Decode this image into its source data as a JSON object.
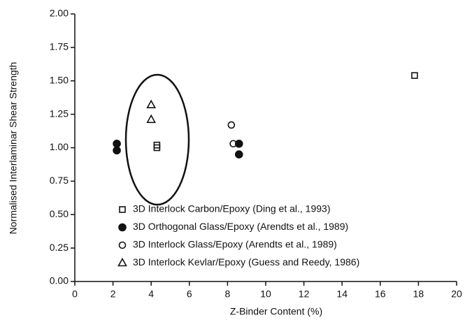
{
  "chart_data": {
    "type": "scatter",
    "xlabel": "Z-Binder Content (%)",
    "ylabel": "Normalised Interlaminar Shear Strength",
    "xlim": [
      0,
      20
    ],
    "xticks": [
      0,
      2,
      4,
      6,
      8,
      10,
      12,
      14,
      16,
      18,
      20
    ],
    "ylim": [
      0,
      2
    ],
    "yticks": [
      {
        "value": 0,
        "label": "0.00"
      },
      {
        "value": 0.25,
        "label": "0.25"
      },
      {
        "value": 0.5,
        "label": "0.50"
      },
      {
        "value": 0.75,
        "label": "0.75"
      },
      {
        "value": 1,
        "label": "1.00"
      },
      {
        "value": 1.25,
        "label": "1.25"
      },
      {
        "value": 1.5,
        "label": "1.50"
      },
      {
        "value": 1.75,
        "label": "1.75"
      },
      {
        "value": 2,
        "label": "2.00"
      }
    ],
    "grid": false,
    "legend": "lower right",
    "series": [
      {
        "name": "3D Interlock Carbon/Epoxy (Ding et al., 1993)",
        "color": "#111111",
        "marker": "square",
        "filled": false,
        "x": [
          4.3,
          4.3,
          17.8
        ],
        "values": [
          1.02,
          1.0,
          1.54
        ]
      },
      {
        "name": "3D Orthogonal Glass/Epoxy (Arendts et al., 1989)",
        "color": "#111111",
        "marker": "circle",
        "filled": true,
        "x": [
          2.2,
          2.2,
          8.6,
          8.6
        ],
        "values": [
          1.03,
          0.98,
          1.03,
          0.95
        ]
      },
      {
        "name": "3D Interlock Glass/Epoxy (Arendts et al., 1989)",
        "color": "#111111",
        "marker": "circle",
        "filled": false,
        "x": [
          8.2,
          8.3
        ],
        "values": [
          1.17,
          1.03
        ]
      },
      {
        "name": "3D Interlock Kevlar/Epoxy (Guess and Reedy, 1986)",
        "color": "#111111",
        "marker": "triangle",
        "filled": false,
        "x": [
          4.0,
          4.0
        ],
        "values": [
          1.32,
          1.21
        ]
      }
    ]
  }
}
